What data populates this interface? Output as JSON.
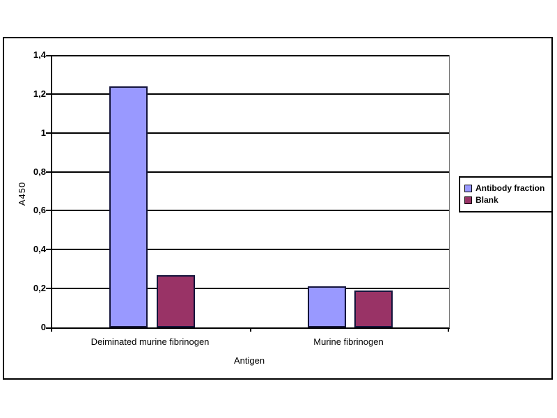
{
  "chart_data": {
    "type": "bar",
    "title": "",
    "categories": [
      "Deiminated murine fibrinogen",
      "Murine fibrinogen"
    ],
    "series": [
      {
        "name": "Antibody fraction",
        "color": "#9999FF",
        "values": [
          1.24,
          0.21
        ]
      },
      {
        "name": "Blank",
        "color": "#993366",
        "values": [
          0.27,
          0.19
        ]
      }
    ],
    "xlabel": "Antigen",
    "ylabel": "A450",
    "ylim": [
      0,
      1.4
    ],
    "ytick_step": 0.2,
    "ytick_labels": [
      "0",
      "0,2",
      "0,4",
      "0,6",
      "0,8",
      "1",
      "1,2",
      "1,4"
    ],
    "decimal_separator": ",",
    "grid": true,
    "legend_position": "right",
    "colors": {
      "bar_border": "#14143c",
      "gridline": "#000000",
      "frame_border": "#000000",
      "background": "#ffffff"
    }
  }
}
